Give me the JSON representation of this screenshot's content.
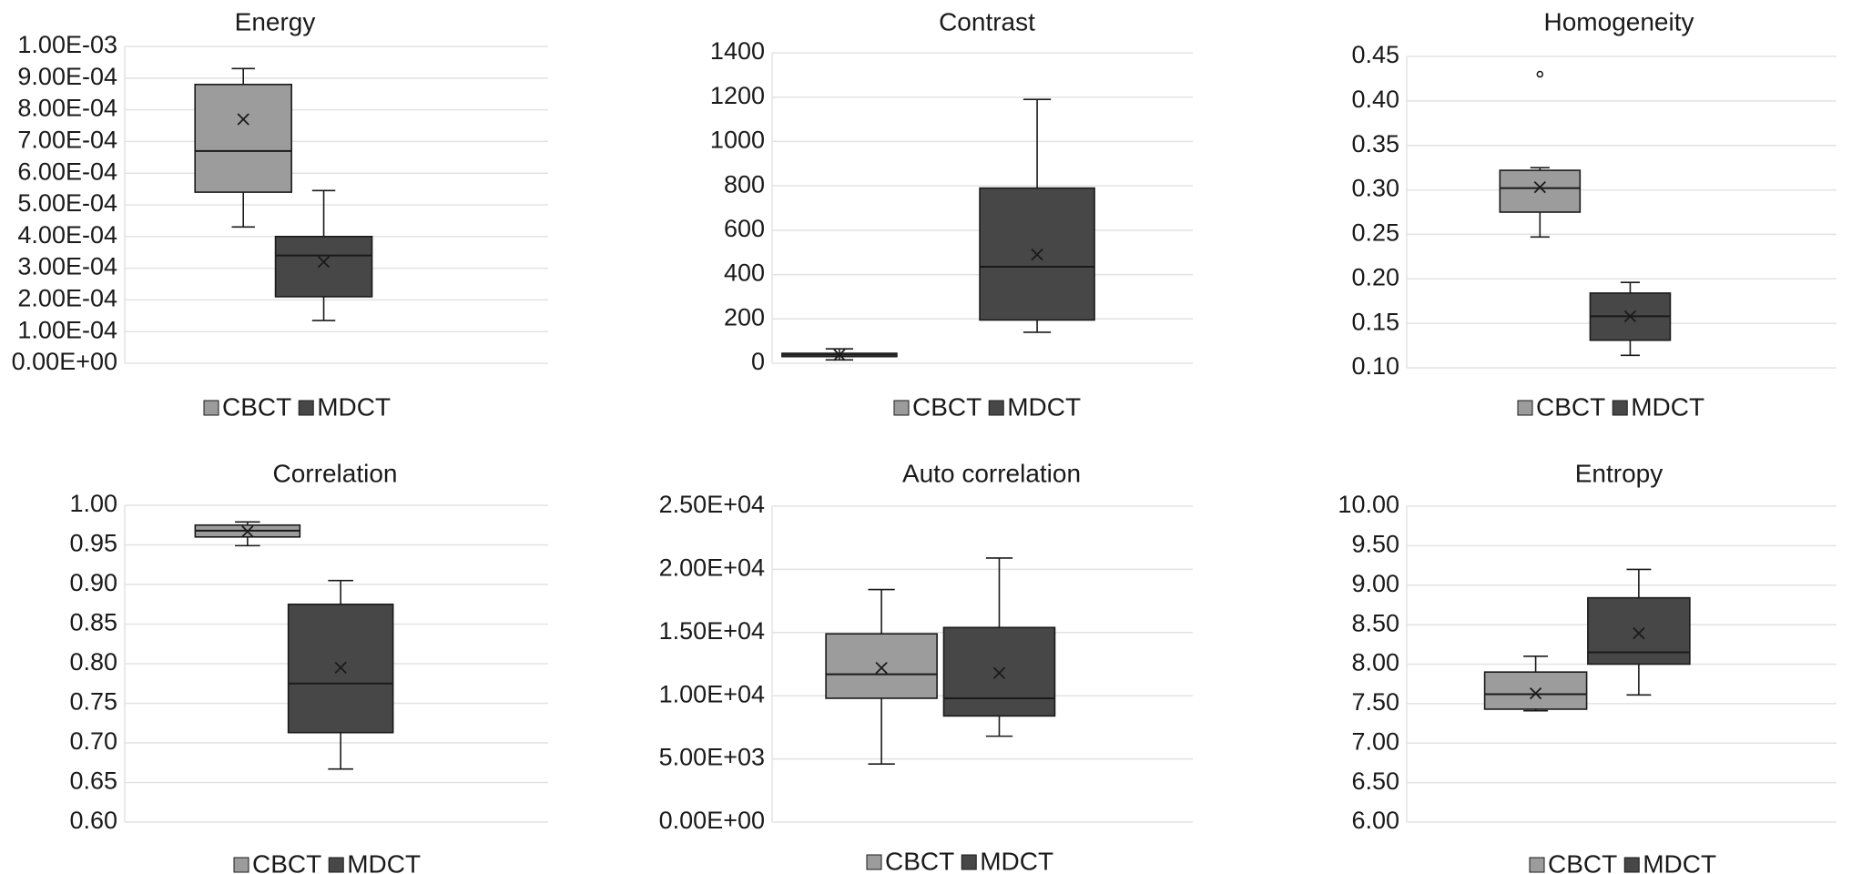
{
  "colors": {
    "CBCT": "#9c9c9c",
    "MDCT": "#474747",
    "grid": "#e3e3e3",
    "stroke": "#1a1a1a"
  },
  "chart_data": [
    {
      "type": "box",
      "title": "Energy",
      "ylim": [
        0,
        0.001
      ],
      "ticks": [
        "0.00E+00",
        "1.00E-04",
        "2.00E-04",
        "3.00E-04",
        "4.00E-04",
        "5.00E-04",
        "6.00E-04",
        "7.00E-04",
        "8.00E-04",
        "9.00E-04",
        "1.00E-03"
      ],
      "legend": [
        "CBCT",
        "MDCT"
      ],
      "series": [
        {
          "name": "CBCT",
          "min": 0.00043,
          "q1": 0.00054,
          "median": 0.00067,
          "q3": 0.00088,
          "max": 0.00093,
          "mean": 0.00077,
          "outliers": []
        },
        {
          "name": "MDCT",
          "min": 0.000135,
          "q1": 0.00021,
          "median": 0.00034,
          "q3": 0.0004,
          "max": 0.000545,
          "mean": 0.00032,
          "outliers": []
        }
      ]
    },
    {
      "type": "box",
      "title": "Contrast",
      "ylim": [
        0,
        1400
      ],
      "ticks": [
        "0",
        "200",
        "400",
        "600",
        "800",
        "1000",
        "1200",
        "1400"
      ],
      "legend": [
        "CBCT",
        "MDCT"
      ],
      "series": [
        {
          "name": "CBCT",
          "min": 15,
          "q1": 30,
          "median": 38,
          "q3": 45,
          "max": 65,
          "mean": 38,
          "outliers": []
        },
        {
          "name": "MDCT",
          "min": 140,
          "q1": 195,
          "median": 435,
          "q3": 790,
          "max": 1190,
          "mean": 490,
          "outliers": []
        }
      ]
    },
    {
      "type": "box",
      "title": "Homogeneity",
      "ylim": [
        0.1,
        0.45
      ],
      "ticks": [
        "0.10",
        "0.15",
        "0.20",
        "0.25",
        "0.30",
        "0.35",
        "0.40",
        "0.45"
      ],
      "legend": [
        "CBCT",
        "MDCT"
      ],
      "series": [
        {
          "name": "CBCT",
          "min": 0.247,
          "q1": 0.275,
          "median": 0.302,
          "q3": 0.322,
          "max": 0.325,
          "mean": 0.303,
          "outliers": [
            0.43
          ]
        },
        {
          "name": "MDCT",
          "min": 0.114,
          "q1": 0.131,
          "median": 0.158,
          "q3": 0.184,
          "max": 0.196,
          "mean": 0.158,
          "outliers": []
        }
      ]
    },
    {
      "type": "box",
      "title": "Correlation",
      "ylim": [
        0.6,
        1.0
      ],
      "ticks": [
        "0.60",
        "0.65",
        "0.70",
        "0.75",
        "0.80",
        "0.85",
        "0.90",
        "0.95",
        "1.00"
      ],
      "legend": [
        "CBCT",
        "MDCT"
      ],
      "series": [
        {
          "name": "CBCT",
          "min": 0.949,
          "q1": 0.96,
          "median": 0.968,
          "q3": 0.975,
          "max": 0.979,
          "mean": 0.967,
          "outliers": []
        },
        {
          "name": "MDCT",
          "min": 0.667,
          "q1": 0.713,
          "median": 0.775,
          "q3": 0.875,
          "max": 0.905,
          "mean": 0.795,
          "outliers": []
        }
      ]
    },
    {
      "type": "box",
      "title": "Auto correlation",
      "ylim": [
        0,
        25000
      ],
      "ticks": [
        "0.00E+00",
        "5.00E+03",
        "1.00E+04",
        "1.50E+04",
        "2.00E+04",
        "2.50E+04"
      ],
      "legend": [
        "CBCT",
        "MDCT"
      ],
      "series": [
        {
          "name": "CBCT",
          "min": 4600,
          "q1": 9800,
          "median": 11700,
          "q3": 14900,
          "max": 18400,
          "mean": 12200,
          "outliers": []
        },
        {
          "name": "MDCT",
          "min": 6800,
          "q1": 8400,
          "median": 9800,
          "q3": 15400,
          "max": 20900,
          "mean": 11800,
          "outliers": []
        }
      ]
    },
    {
      "type": "box",
      "title": "Entropy",
      "ylim": [
        6.0,
        10.0
      ],
      "ticks": [
        "6.00",
        "6.50",
        "7.00",
        "7.50",
        "8.00",
        "8.50",
        "9.00",
        "9.50",
        "10.00"
      ],
      "legend": [
        "CBCT",
        "MDCT"
      ],
      "series": [
        {
          "name": "CBCT",
          "min": 7.41,
          "q1": 7.43,
          "median": 7.62,
          "q3": 7.9,
          "max": 8.1,
          "mean": 7.63,
          "outliers": []
        },
        {
          "name": "MDCT",
          "min": 7.61,
          "q1": 8.0,
          "median": 8.15,
          "q3": 8.84,
          "max": 9.2,
          "mean": 8.39,
          "outliers": []
        }
      ]
    }
  ]
}
